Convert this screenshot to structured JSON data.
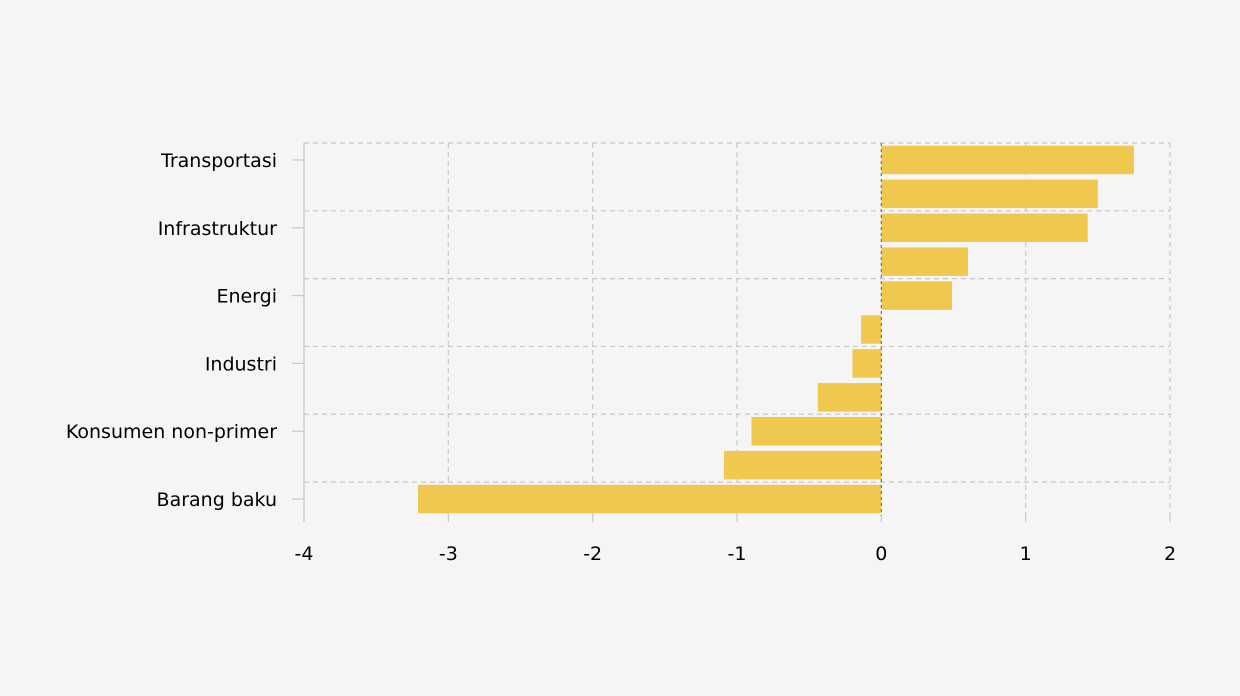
{
  "chart_data": {
    "type": "bar",
    "orientation": "horizontal",
    "bar_color": "#f0c850",
    "grid": true,
    "xlim": [
      -4,
      2
    ],
    "x_ticks": [
      -4,
      -3,
      -2,
      -1,
      0,
      1,
      2
    ],
    "x_tick_labels": [
      "-4",
      "-3",
      "-2",
      "-1",
      "0",
      "1",
      "2"
    ],
    "y_tick_labels": [
      "Transportasi",
      "Infrastruktur",
      "Energi",
      "Industri",
      "Konsumen non-primer",
      "Barang baku"
    ],
    "values": [
      1.75,
      1.5,
      1.43,
      0.6,
      0.49,
      -0.14,
      -0.2,
      -0.44,
      -0.9,
      -1.09,
      -3.21
    ]
  }
}
